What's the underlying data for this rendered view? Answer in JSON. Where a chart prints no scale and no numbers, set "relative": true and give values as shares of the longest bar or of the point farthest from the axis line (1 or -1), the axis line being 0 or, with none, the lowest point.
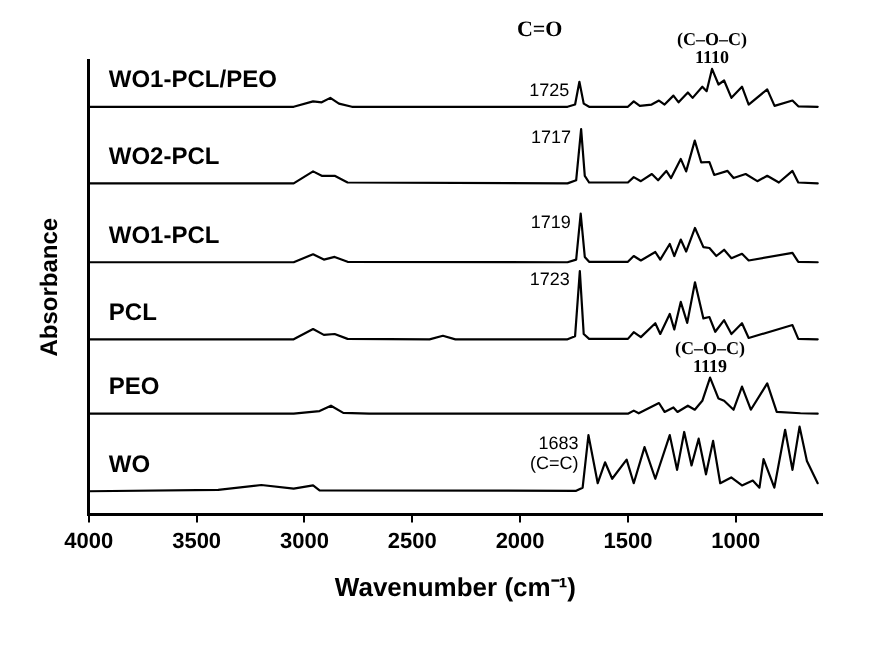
{
  "chart_data": {
    "type": "line",
    "relative": true,
    "xlabel": "Wavenumber (cm⁻¹)",
    "ylabel": "Absorbance",
    "xlim": [
      4000,
      600
    ],
    "xticks": [
      4000,
      3500,
      3000,
      2500,
      2000,
      1500,
      1000
    ],
    "legend": false,
    "grid": false,
    "marker": "none",
    "line_style": "solid",
    "annotations": [
      "C=O",
      {
        "text": "(C–O–C)\n1110",
        "x": 1110,
        "y": 1.0
      },
      {
        "text": "1725",
        "x": 1725,
        "y": 0.971
      },
      {
        "text": "1717",
        "x": 1717,
        "y": 0.865
      },
      {
        "text": "1719",
        "x": 1719,
        "y": 0.675
      },
      {
        "text": "1723",
        "x": 1723,
        "y": 0.546
      },
      {
        "text": "(C–O–C)\n1119",
        "x": 1119,
        "y": 0.307
      },
      {
        "text": "1683\n(C=C)",
        "x": 1683,
        "y": 0.178
      }
    ],
    "series": [
      {
        "name": "WO1-PCL/PEO",
        "color": "#000000",
        "x": [
          4000,
          3050,
          2960,
          2920,
          2880,
          2840,
          2780,
          1780,
          1745,
          1725,
          1705,
          1680,
          1500,
          1473,
          1445,
          1390,
          1356,
          1330,
          1289,
          1265,
          1222,
          1200,
          1155,
          1135,
          1110,
          1080,
          1054,
          1020,
          971,
          940,
          854,
          820,
          737,
          710,
          620
        ],
        "values": [
          0.915,
          0.915,
          0.927,
          0.925,
          0.935,
          0.922,
          0.915,
          0.915,
          0.92,
          0.971,
          0.922,
          0.915,
          0.915,
          0.927,
          0.917,
          0.92,
          0.929,
          0.92,
          0.94,
          0.925,
          0.947,
          0.935,
          0.96,
          0.95,
          1.0,
          0.965,
          0.974,
          0.935,
          0.96,
          0.92,
          0.954,
          0.917,
          0.929,
          0.916,
          0.915
        ]
      },
      {
        "name": "WO2-PCL",
        "color": "#000000",
        "x": [
          4000,
          3050,
          2960,
          2920,
          2860,
          2800,
          1780,
          1740,
          1717,
          1700,
          1680,
          1500,
          1473,
          1440,
          1389,
          1360,
          1322,
          1300,
          1255,
          1230,
          1190,
          1160,
          1122,
          1100,
          1038,
          1010,
          954,
          900,
          854,
          800,
          737,
          710,
          620
        ],
        "values": [
          0.743,
          0.743,
          0.77,
          0.76,
          0.76,
          0.745,
          0.743,
          0.75,
          0.865,
          0.76,
          0.745,
          0.745,
          0.757,
          0.748,
          0.764,
          0.75,
          0.771,
          0.755,
          0.798,
          0.77,
          0.839,
          0.79,
          0.791,
          0.762,
          0.771,
          0.755,
          0.764,
          0.748,
          0.76,
          0.745,
          0.771,
          0.745,
          0.743
        ]
      },
      {
        "name": "WO1-PCL",
        "color": "#000000",
        "x": [
          4000,
          3050,
          2960,
          2910,
          2860,
          2800,
          1780,
          1740,
          1719,
          1700,
          1680,
          1500,
          1473,
          1440,
          1373,
          1350,
          1306,
          1285,
          1255,
          1230,
          1189,
          1150,
          1122,
          1090,
          1054,
          1020,
          971,
          940,
          737,
          710,
          620
        ],
        "values": [
          0.566,
          0.566,
          0.584,
          0.572,
          0.578,
          0.567,
          0.566,
          0.572,
          0.675,
          0.578,
          0.567,
          0.567,
          0.58,
          0.57,
          0.589,
          0.572,
          0.607,
          0.58,
          0.617,
          0.59,
          0.643,
          0.6,
          0.598,
          0.58,
          0.594,
          0.575,
          0.585,
          0.57,
          0.587,
          0.567,
          0.566
        ]
      },
      {
        "name": "PCL",
        "color": "#000000",
        "x": [
          4000,
          3050,
          2960,
          2910,
          2860,
          2800,
          2420,
          2358,
          2300,
          1780,
          1745,
          1723,
          1705,
          1680,
          1500,
          1473,
          1440,
          1373,
          1350,
          1306,
          1285,
          1255,
          1225,
          1189,
          1150,
          1122,
          1095,
          1054,
          1020,
          971,
          940,
          737,
          710,
          620
        ],
        "values": [
          0.393,
          0.393,
          0.416,
          0.403,
          0.405,
          0.394,
          0.393,
          0.401,
          0.393,
          0.393,
          0.4,
          0.546,
          0.405,
          0.394,
          0.394,
          0.409,
          0.398,
          0.429,
          0.405,
          0.45,
          0.415,
          0.477,
          0.43,
          0.521,
          0.44,
          0.443,
          0.41,
          0.436,
          0.405,
          0.429,
          0.396,
          0.425,
          0.394,
          0.393
        ]
      },
      {
        "name": "PEO",
        "color": "#000000",
        "x": [
          4000,
          3050,
          2930,
          2877,
          2820,
          2700,
          1500,
          1473,
          1450,
          1356,
          1330,
          1289,
          1270,
          1222,
          1190,
          1155,
          1119,
          1080,
          1054,
          1010,
          971,
          930,
          854,
          810,
          700,
          620
        ],
        "values": [
          0.226,
          0.226,
          0.232,
          0.244,
          0.228,
          0.226,
          0.226,
          0.233,
          0.227,
          0.25,
          0.23,
          0.24,
          0.23,
          0.244,
          0.235,
          0.255,
          0.307,
          0.26,
          0.255,
          0.235,
          0.287,
          0.235,
          0.294,
          0.23,
          0.227,
          0.226
        ]
      },
      {
        "name": "WO",
        "color": "#000000",
        "x": [
          4000,
          3400,
          3200,
          3050,
          2960,
          2930,
          1740,
          1710,
          1683,
          1640,
          1606,
          1573,
          1506,
          1473,
          1423,
          1373,
          1306,
          1272,
          1239,
          1205,
          1172,
          1138,
          1105,
          1072,
          1021,
          971,
          921,
          890,
          871,
          821,
          771,
          737,
          704,
          670,
          620
        ],
        "values": [
          0.052,
          0.055,
          0.066,
          0.058,
          0.065,
          0.054,
          0.053,
          0.06,
          0.178,
          0.07,
          0.117,
          0.08,
          0.123,
          0.07,
          0.151,
          0.08,
          0.178,
          0.1,
          0.185,
          0.11,
          0.17,
          0.09,
          0.165,
          0.07,
          0.083,
          0.065,
          0.076,
          0.06,
          0.124,
          0.06,
          0.19,
          0.1,
          0.197,
          0.12,
          0.07
        ]
      }
    ]
  }
}
